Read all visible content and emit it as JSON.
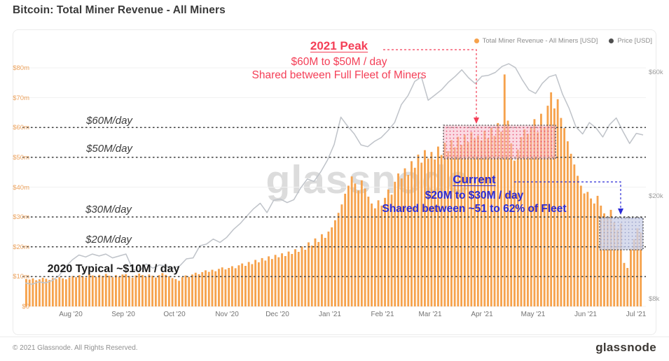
{
  "header": {
    "title": "Bitcoin: Total Miner Revenue - All Miners"
  },
  "legend": [
    {
      "label": "Total Miner Revenue - All Miners [USD]",
      "color": "#F6A24C"
    },
    {
      "label": "Price [USD]",
      "color": "#4e4e4e"
    }
  ],
  "watermark": "glassnode",
  "annotations": {
    "peak": {
      "title": "2021 Peak",
      "line1": "$60M to $50M / day",
      "line2": "Shared between Full Fleet of Miners",
      "color": "#F43F57"
    },
    "current": {
      "title": "Current",
      "line1": "$20M to $30M / day",
      "line2": "Shared between ~51 to 62% of Fleet",
      "color": "#2B2BD6"
    },
    "typical": {
      "label": "2020 Typical ~$10M / day"
    },
    "levels": [
      {
        "label": "$60M/day",
        "value": 60
      },
      {
        "label": "$50M/day",
        "value": 50
      },
      {
        "label": "$30M/day",
        "value": 30
      },
      {
        "label": "$20M/day",
        "value": 20
      }
    ]
  },
  "footer": {
    "copyright": "© 2021 Glassnode. All Rights Reserved.",
    "brand": "glassnode"
  },
  "colors": {
    "bars": "#F6A24C",
    "price_line": "#bfc3c9",
    "peak_red": "#F43F57",
    "current_blue": "#2B2BD6",
    "left_axis": "#eca25d",
    "right_axis": "#9c9c9c",
    "dashed_line": "#3f3f3f"
  },
  "chart_data": {
    "type": "bar+line",
    "title": "Bitcoin: Total Miner Revenue - All Miners",
    "x_range": [
      "Jul '20",
      "Jul '21"
    ],
    "x_ticks": [
      "Aug '20",
      "Sep '20",
      "Oct '20",
      "Nov '20",
      "Dec '20",
      "Jan '21",
      "Feb '21",
      "Mar '21",
      "Apr '21",
      "May '21",
      "Jun '21",
      "Jul '21"
    ],
    "left_axis": {
      "name": "Total Miner Revenue - All Miners [USD]",
      "lim_musd": [
        0,
        80
      ],
      "ticks": [
        {
          "label": "$0",
          "value": 0
        },
        {
          "label": "$10m",
          "value": 10
        },
        {
          "label": "$20m",
          "value": 20
        },
        {
          "label": "$30m",
          "value": 30
        },
        {
          "label": "$40m",
          "value": 40
        },
        {
          "label": "$50m",
          "value": 50
        },
        {
          "label": "$60m",
          "value": 60
        },
        {
          "label": "$70m",
          "value": 70
        },
        {
          "label": "$80m",
          "value": 80
        }
      ]
    },
    "right_axis": {
      "name": "Price [USD]",
      "scale": "log",
      "ticks": [
        {
          "label": "$8k",
          "value": 8
        },
        {
          "label": "$20k",
          "value": 20
        },
        {
          "label": "$60k",
          "value": 60
        }
      ]
    },
    "dashed_levels_musd": [
      10,
      20,
      30,
      50,
      60
    ],
    "highlight_boxes": [
      {
        "name": "2021 Peak",
        "band_musd": [
          50,
          60
        ],
        "x_from": "mid-Mar '21",
        "x_to": "early-May '21"
      },
      {
        "name": "Current",
        "band_musd": [
          20,
          30
        ],
        "x_from": "early-Jun '21",
        "x_to": "mid-Jul '21"
      }
    ],
    "series": [
      {
        "name": "Total Miner Revenue - All Miners [USD]",
        "type": "bar",
        "unit": "$M per day",
        "values": [
          9.2,
          9.0,
          9.4,
          8.8,
          9.1,
          9.6,
          9.3,
          8.9,
          9.5,
          9.2,
          9.8,
          9.4,
          9.1,
          9.7,
          10.2,
          9.8,
          10.5,
          10.1,
          9.7,
          10.8,
          10.4,
          9.9,
          10.6,
          10.2,
          10.9,
          10.3,
          9.8,
          10.5,
          10.0,
          10.7,
          10.8,
          10.2,
          9.6,
          10.4,
          11.0,
          10.5,
          9.9,
          10.7,
          10.3,
          9.7,
          10.5,
          11.2,
          10.6,
          10.1,
          9.5,
          9.2,
          8.6,
          9.8,
          10.4,
          9.9,
          10.7,
          11.3,
          10.8,
          11.5,
          12.1,
          11.6,
          12.3,
          11.8,
          12.6,
          13.1,
          12.4,
          12.9,
          13.5,
          12.8,
          13.8,
          14.4,
          13.6,
          14.9,
          14.2,
          15.6,
          14.8,
          16.2,
          15.4,
          16.8,
          15.9,
          17.3,
          16.5,
          17.8,
          16.9,
          18.4,
          17.6,
          19.2,
          18.3,
          20.1,
          19.0,
          21.5,
          20.4,
          22.8,
          21.6,
          24.2,
          23.0,
          25.1,
          26.5,
          28.9,
          31.4,
          34.2,
          37.8,
          40.5,
          43.6,
          41.2,
          38.9,
          42.3,
          39.5,
          36.8,
          34.5,
          32.9,
          35.6,
          33.8,
          36.4,
          39.2,
          37.5,
          41.8,
          44.6,
          42.9,
          46.3,
          44.1,
          48.7,
          46.5,
          50.9,
          48.2,
          52.4,
          49.6,
          51.8,
          49.3,
          53.6,
          50.8,
          54.9,
          52.1,
          55.8,
          53.4,
          56.9,
          54.2,
          57.6,
          55.1,
          58.4,
          56.2,
          57.3,
          55.7,
          58.9,
          56.4,
          59.8,
          57.2,
          61.5,
          58.6,
          77.8,
          62.3,
          54.7,
          48.9,
          52.6,
          56.8,
          59.4,
          57.9,
          60.2,
          62.8,
          58.4,
          64.6,
          60.2,
          67.3,
          71.8,
          66.4,
          69.5,
          63.2,
          59.8,
          55.4,
          51.2,
          47.6,
          43.8,
          40.5,
          37.9,
          38.4,
          36.2,
          34.5,
          37.1,
          33.8,
          31.2,
          29.6,
          32.4,
          28.2,
          25.6,
          27.8,
          14.6,
          12.9,
          19.4,
          22.6,
          26.2,
          24.8
        ]
      },
      {
        "name": "Price [USD]",
        "type": "line",
        "unit": "$k",
        "values": [
          9.2,
          9.1,
          9.3,
          9.2,
          9.4,
          9.8,
          10.6,
          11.3,
          11.8,
          11.6,
          11.9,
          11.7,
          11.9,
          11.5,
          11.7,
          11.9,
          10.4,
          10.2,
          10.9,
          10.5,
          10.8,
          10.7,
          10.5,
          10.7,
          11.4,
          11.5,
          12.8,
          13.0,
          13.6,
          13.2,
          13.8,
          14.8,
          15.6,
          16.7,
          17.8,
          18.7,
          17.2,
          19.2,
          19.4,
          18.8,
          19.3,
          21.4,
          23.2,
          22.7,
          24.7,
          27.4,
          31.5,
          40.2,
          37.1,
          34.6,
          31.4,
          30.9,
          32.4,
          33.5,
          35.6,
          38.3,
          44.9,
          48.7,
          55.2,
          57.4,
          46.7,
          48.9,
          51.3,
          54.8,
          57.7,
          61.2,
          57.1,
          54.2,
          57.8,
          58.3,
          59.8,
          63.1,
          64.6,
          62.4,
          56.1,
          51.2,
          49.6,
          54.3,
          57.5,
          58.6,
          49.3,
          43.4,
          36.9,
          34.6,
          38.3,
          36.5,
          33.7,
          37.6,
          39.9,
          35.4,
          31.8,
          34.8,
          34.3
        ]
      }
    ]
  }
}
